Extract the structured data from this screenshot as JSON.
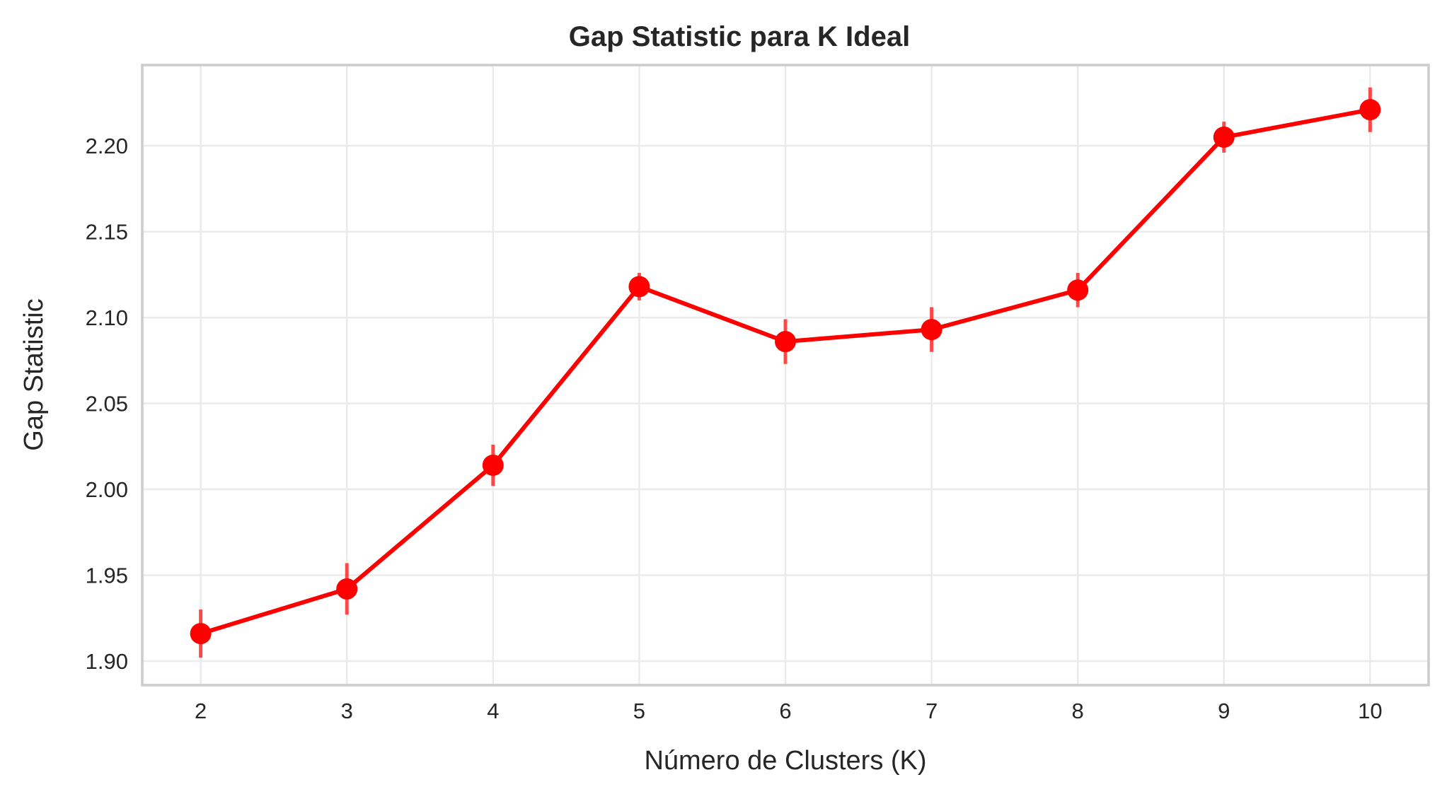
{
  "chart_data": {
    "type": "line",
    "title": "Gap Statistic para K Ideal",
    "xlabel": "Número de Clusters (K)",
    "ylabel": "Gap Statistic",
    "x": [
      2,
      3,
      4,
      5,
      6,
      7,
      8,
      9,
      10
    ],
    "x_ticks": [
      "2",
      "3",
      "4",
      "5",
      "6",
      "7",
      "8",
      "9",
      "10"
    ],
    "y_ticks": [
      "1.90",
      "1.95",
      "2.00",
      "2.05",
      "2.10",
      "2.15",
      "2.20"
    ],
    "xlim": [
      1.6,
      10.4
    ],
    "ylim": [
      1.886,
      2.247
    ],
    "grid": true,
    "series": [
      {
        "values": [
          1.916,
          1.942,
          2.014,
          2.118,
          2.086,
          2.093,
          2.116,
          2.205,
          2.221
        ],
        "errors": [
          0.014,
          0.015,
          0.012,
          0.008,
          0.013,
          0.013,
          0.01,
          0.009,
          0.013
        ],
        "color": "#ff0000",
        "marker": "circle"
      }
    ]
  }
}
